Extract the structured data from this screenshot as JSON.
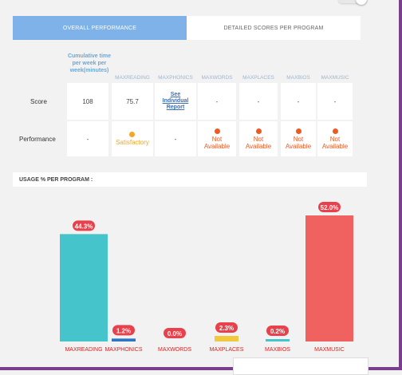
{
  "tabs": [
    {
      "label": "OVERALL PERFORMANCE",
      "active": true
    },
    {
      "label": "DETAILED SCORES PER PROGRAM",
      "active": false
    }
  ],
  "table": {
    "first_header": "Cumulative time per week per week(minutes)",
    "columns": [
      "MAXREADING",
      "MAXPHONICS",
      "MAXWORDS",
      "MAXPLACES",
      "MAXBIOS",
      "MAXMUSIC"
    ],
    "row_labels": {
      "score": "Score",
      "performance": "Performance"
    },
    "score": [
      "108",
      "75.7",
      "See Individual Report",
      "-",
      "-",
      "-",
      "-"
    ],
    "performance": [
      {
        "text": "-",
        "dot": ""
      },
      {
        "text": "Satisfactory",
        "dot": "#f5a623"
      },
      {
        "text": "-",
        "dot": ""
      },
      {
        "text": "Not Available",
        "dot": "#ee5a24"
      },
      {
        "text": "Not Available",
        "dot": "#ee5a24"
      },
      {
        "text": "Not Available",
        "dot": "#ee5a24"
      },
      {
        "text": "Not Available",
        "dot": "#ee5a24"
      }
    ]
  },
  "usage": {
    "heading": "USAGE % PER PROGRAM :"
  },
  "chart_data": {
    "type": "bar",
    "categories": [
      "MAXREADING",
      "MAXPHONICS",
      "MAXWORDS",
      "MAXPLACES",
      "MAXBIOS",
      "MAXMUSIC"
    ],
    "values": [
      44.3,
      1.2,
      0.0,
      2.3,
      0.2,
      52.0
    ],
    "labels": [
      "44.3%",
      "1.2%",
      "0.0%",
      "2.3%",
      "0.2%",
      "52.0%"
    ],
    "colors": [
      "#45c4cb",
      "#2e75c4",
      "#45c4cb",
      "#f0c93e",
      "#45c4cb",
      "#f0625f"
    ],
    "title": "",
    "xlabel": "",
    "ylabel": "",
    "ylim": [
      0,
      52
    ],
    "grid": false,
    "legend": "none"
  },
  "colors": {
    "accent": "#7fb2e8",
    "badge": "#e8414b",
    "category_label": "#e02020"
  }
}
